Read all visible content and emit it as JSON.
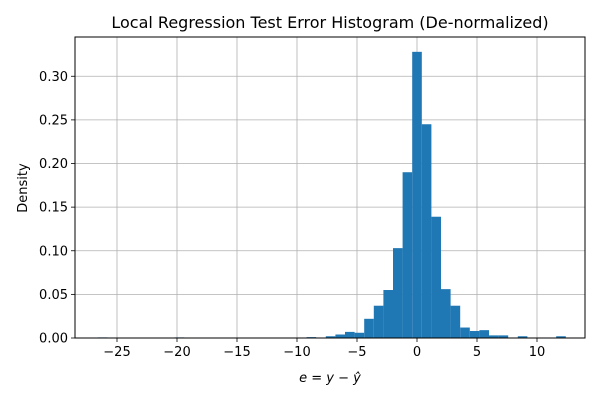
{
  "chart_data": {
    "type": "bar",
    "title": "Local Regression Test Error Histogram (De-normalized)",
    "xlabel": "e = y − ŷ",
    "ylabel": "Density",
    "xlim": [
      -28.5,
      14.0
    ],
    "ylim": [
      0.0,
      0.345
    ],
    "xticks": [
      -25,
      -20,
      -15,
      -10,
      -5,
      0,
      5,
      10
    ],
    "yticks": [
      0.0,
      0.05,
      0.1,
      0.15,
      0.2,
      0.25,
      0.3
    ],
    "grid": true,
    "bar_color": "#1f77b4",
    "bins": [
      {
        "x0": -26.6,
        "x1": -25.8,
        "value": 0.0005
      },
      {
        "x0": -20.2,
        "x1": -19.4,
        "value": 0.0005
      },
      {
        "x0": -9.2,
        "x1": -8.4,
        "value": 0.001
      },
      {
        "x0": -7.6,
        "x1": -6.8,
        "value": 0.002
      },
      {
        "x0": -6.8,
        "x1": -6.0,
        "value": 0.004
      },
      {
        "x0": -6.0,
        "x1": -5.2,
        "value": 0.007
      },
      {
        "x0": -5.2,
        "x1": -4.4,
        "value": 0.006
      },
      {
        "x0": -4.4,
        "x1": -3.6,
        "value": 0.022
      },
      {
        "x0": -3.6,
        "x1": -2.8,
        "value": 0.037
      },
      {
        "x0": -2.8,
        "x1": -2.0,
        "value": 0.055
      },
      {
        "x0": -2.0,
        "x1": -1.2,
        "value": 0.103
      },
      {
        "x0": -1.2,
        "x1": -0.4,
        "value": 0.19
      },
      {
        "x0": -0.4,
        "x1": 0.4,
        "value": 0.328
      },
      {
        "x0": 0.4,
        "x1": 1.2,
        "value": 0.245
      },
      {
        "x0": 1.2,
        "x1": 2.0,
        "value": 0.139
      },
      {
        "x0": 2.0,
        "x1": 2.8,
        "value": 0.056
      },
      {
        "x0": 2.8,
        "x1": 3.6,
        "value": 0.037
      },
      {
        "x0": 3.6,
        "x1": 4.4,
        "value": 0.012
      },
      {
        "x0": 4.4,
        "x1": 5.2,
        "value": 0.008
      },
      {
        "x0": 5.2,
        "x1": 6.0,
        "value": 0.009
      },
      {
        "x0": 6.0,
        "x1": 6.8,
        "value": 0.003
      },
      {
        "x0": 6.8,
        "x1": 7.6,
        "value": 0.003
      },
      {
        "x0": 8.4,
        "x1": 9.2,
        "value": 0.002
      },
      {
        "x0": 11.6,
        "x1": 12.4,
        "value": 0.002
      }
    ]
  }
}
